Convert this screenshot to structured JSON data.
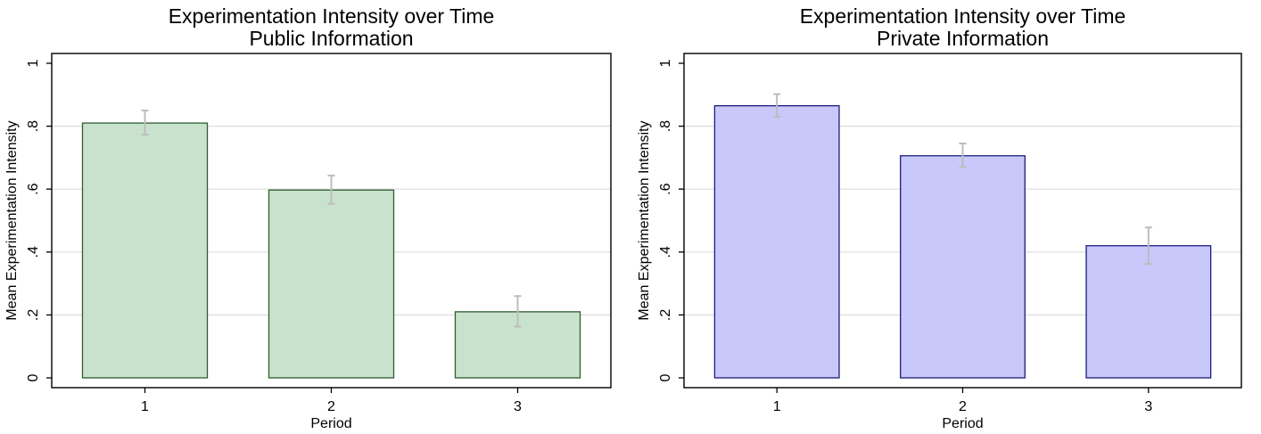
{
  "chart_data": [
    {
      "type": "bar",
      "title": "Experimentation Intensity over Time",
      "subtitle": "Public Information",
      "xlabel": "Period",
      "ylabel": "Mean Experimentation Intensity",
      "categories": [
        "1",
        "2",
        "3"
      ],
      "values": [
        0.81,
        0.597,
        0.21
      ],
      "error_bars": [
        {
          "low": 0.773,
          "high": 0.85
        },
        {
          "low": 0.553,
          "high": 0.643
        },
        {
          "low": 0.163,
          "high": 0.26
        }
      ],
      "ylim": [
        0,
        1
      ],
      "yticks": [
        0,
        0.2,
        0.4,
        0.6,
        0.8,
        1
      ],
      "ytick_labels": [
        "0",
        ".2",
        ".4",
        ".6",
        ".8",
        "1"
      ],
      "grid": true,
      "colors": {
        "fill": "#c9e2cd",
        "stroke": "#2d5e2f",
        "error": "#bdbdbd",
        "grid": "#dddddd"
      }
    },
    {
      "type": "bar",
      "title": "Experimentation Intensity over Time",
      "subtitle": "Private Information",
      "xlabel": "Period",
      "ylabel": "Mean Experimentation Intensity",
      "categories": [
        "1",
        "2",
        "3"
      ],
      "values": [
        0.865,
        0.706,
        0.42
      ],
      "error_bars": [
        {
          "low": 0.83,
          "high": 0.902
        },
        {
          "low": 0.67,
          "high": 0.745
        },
        {
          "low": 0.362,
          "high": 0.478
        }
      ],
      "ylim": [
        0,
        1
      ],
      "yticks": [
        0,
        0.2,
        0.4,
        0.6,
        0.8,
        1
      ],
      "ytick_labels": [
        "0",
        ".2",
        ".4",
        ".6",
        ".8",
        "1"
      ],
      "grid": true,
      "colors": {
        "fill": "#c8c8fa",
        "stroke": "#1c1c7e",
        "error": "#bdbdbd",
        "grid": "#dddddd"
      }
    }
  ]
}
